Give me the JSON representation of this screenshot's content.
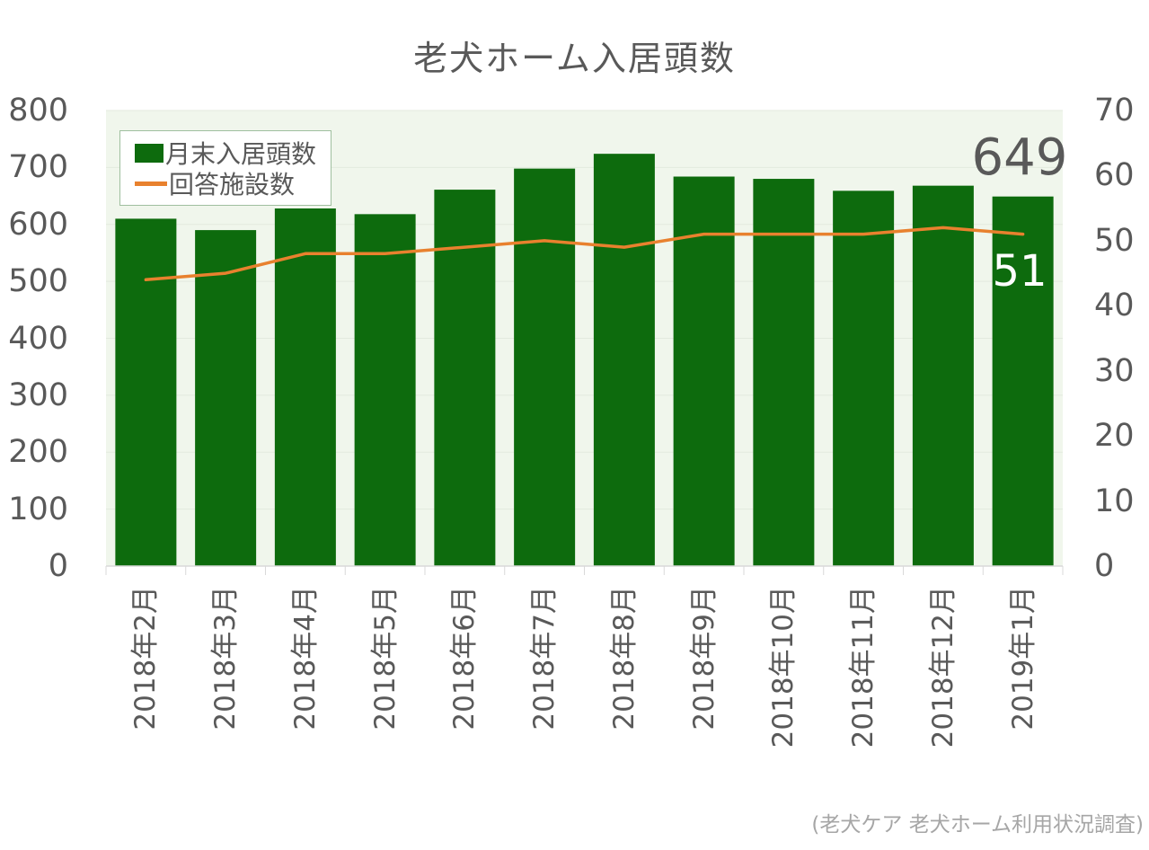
{
  "title": "老犬ホーム入居頭数",
  "source_note": "(老犬ケア 老犬ホーム利用状況調査)",
  "annotations": {
    "last_bar_value": "649",
    "last_line_value": "51"
  },
  "colors": {
    "bar": "#0d6b0d",
    "line": "#e8812e",
    "plot_bg": "#f0f6ec",
    "grid": "#e3eade",
    "axis_line": "#d9d9d9",
    "text": "#595959",
    "source_text": "#a6a6a6",
    "legend_border": "#9fbf9f",
    "last_line_label_color": "#ffffff"
  },
  "chart_data": {
    "type": "bar",
    "subtype": "bar+line combo, dual axis",
    "title": "老犬ホーム入居頭数",
    "categories": [
      "2018年2月",
      "2018年3月",
      "2018年4月",
      "2018年5月",
      "2018年6月",
      "2018年7月",
      "2018年8月",
      "2018年9月",
      "2018年10月",
      "2018年11月",
      "2018年12月",
      "2019年1月"
    ],
    "series": [
      {
        "name": "月末入居頭数",
        "type": "bar",
        "axis": "left",
        "values": [
          610,
          590,
          628,
          618,
          661,
          698,
          724,
          684,
          680,
          659,
          668,
          649
        ]
      },
      {
        "name": "回答施設数",
        "type": "line",
        "axis": "right",
        "values": [
          44,
          45,
          48,
          48,
          49,
          50,
          49,
          51,
          51,
          51,
          52,
          51
        ]
      }
    ],
    "left_axis": {
      "min": 0,
      "max": 800,
      "step": 100,
      "ticks": [
        0,
        100,
        200,
        300,
        400,
        500,
        600,
        700,
        800
      ]
    },
    "right_axis": {
      "min": 0,
      "max": 70,
      "step": 10,
      "ticks": [
        0,
        10,
        20,
        30,
        40,
        50,
        60,
        70
      ]
    },
    "grid": true,
    "legend_position": "top-left",
    "data_labels": [
      {
        "series": "月末入居頭数",
        "category": "2019年1月",
        "text": "649"
      },
      {
        "series": "回答施設数",
        "category": "2019年1月",
        "text": "51"
      }
    ]
  }
}
